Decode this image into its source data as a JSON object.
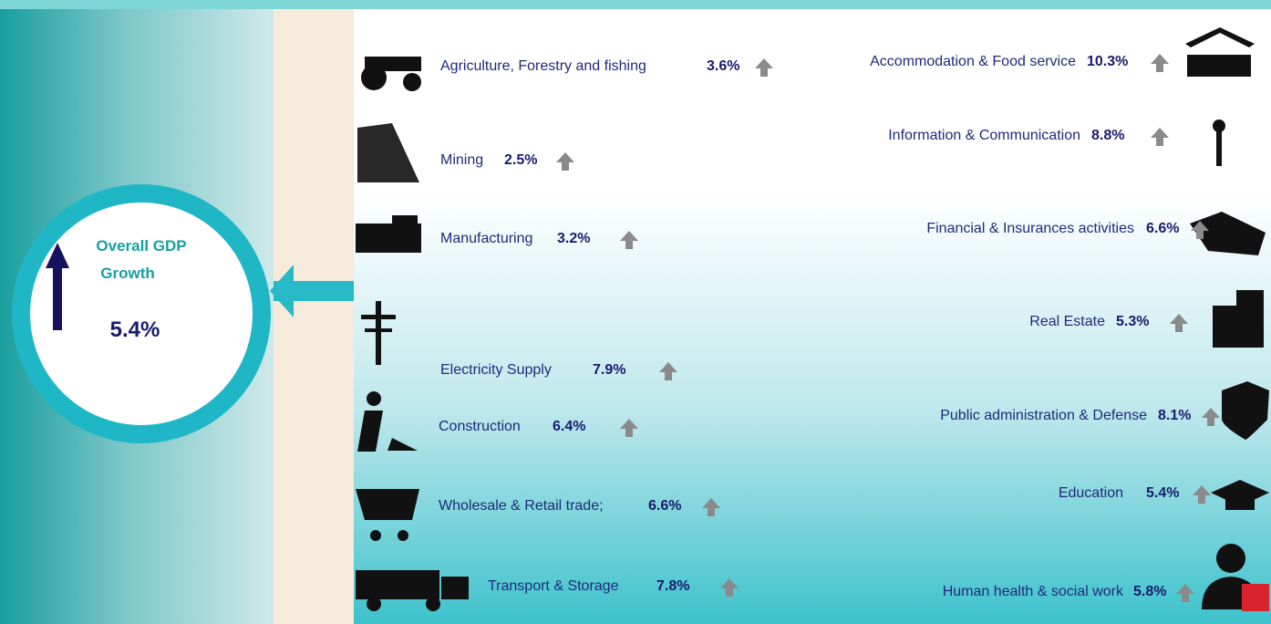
{
  "overall": {
    "label_line1": "Overall GDP",
    "label_line2": "Growth",
    "value": "5.4%"
  },
  "left_sectors": [
    {
      "name": "Agriculture, Forestry and fishing",
      "value": "3.6%"
    },
    {
      "name": "Mining",
      "value": "2.5%"
    },
    {
      "name": "Manufacturing",
      "value": "3.2%"
    },
    {
      "name": "Electricity Supply",
      "value": "7.9%"
    },
    {
      "name": "Construction",
      "value": "6.4%"
    },
    {
      "name": "Wholesale & Retail trade;",
      "value": "6.6%"
    },
    {
      "name": "Transport & Storage",
      "value": "7.8%"
    }
  ],
  "right_sectors": [
    {
      "name": "Accommodation & Food service",
      "value": "10.3%"
    },
    {
      "name": "Information & Communication",
      "value": "8.8%"
    },
    {
      "name": "Financial & Insurances activities",
      "value": "6.6%"
    },
    {
      "name": "Real Estate",
      "value": "5.3%"
    },
    {
      "name": "Public administration & Defense",
      "value": "8.1%"
    },
    {
      "name": "Education",
      "value": "5.4%"
    },
    {
      "name": "Human health & social work",
      "value": "5.8%"
    }
  ]
}
